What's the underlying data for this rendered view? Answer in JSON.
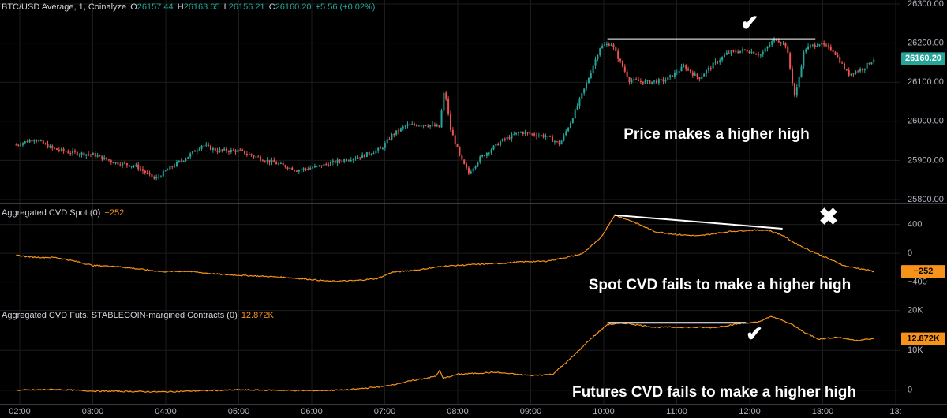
{
  "panes": {
    "price": {
      "header": {
        "symbol": "BTC/USD Average, 1, Coinalyze",
        "o_label": "O",
        "o": "26157.44",
        "h_label": "H",
        "h": "26163.65",
        "l_label": "L",
        "l": "26156.21",
        "c_label": "C",
        "c": "26160.20",
        "change": "+5.56 (+0.02%)"
      },
      "last_value": "26160.20",
      "annotation": "Price makes a higher high",
      "annotation_mark": "✔",
      "colors": {
        "up": "#26a69a",
        "down": "#ef5350",
        "last_badge": "#26a69a"
      }
    },
    "cvd_spot": {
      "header": {
        "name": "Aggregated CVD Spot (0)",
        "value": "−252"
      },
      "last_value": "−252",
      "annotation": "Spot CVD fails to make a higher high",
      "annotation_mark": "✖",
      "colors": {
        "line": "#f7931a"
      }
    },
    "cvd_futures": {
      "header": {
        "name": "Aggregated CVD Futs. STABLECOIN-margined Contracts (0)",
        "value": "12.872K"
      },
      "last_value": "12.872K",
      "annotation": "Futures CVD fails to make a higher high",
      "annotation_mark": "✔",
      "colors": {
        "line": "#f7931a"
      }
    }
  },
  "chart_data": [
    {
      "type": "candlestick",
      "title": "BTC/USD Average, 1, Coinalyze",
      "ylim": [
        25790,
        26310
      ],
      "y_ticks": [
        "25800.00",
        "25900.00",
        "26000.00",
        "26100.00",
        "26200.00",
        "26300.00"
      ],
      "x_tick_labels": [
        "02:00",
        "03:00",
        "04:00",
        "05:00",
        "06:00",
        "07:00",
        "08:00",
        "09:00",
        "10:00",
        "11:00",
        "12:00",
        "13:00",
        "13:"
      ],
      "x_range_hours": [
        1.95,
        13.7
      ],
      "series": [
        {
          "values": [
            [
              1.95,
              25940
            ],
            [
              2.2,
              25955
            ],
            [
              2.45,
              25930
            ],
            [
              2.7,
              25920
            ],
            [
              3.0,
              25915
            ],
            [
              3.3,
              25895
            ],
            [
              3.6,
              25885
            ],
            [
              3.85,
              25852
            ],
            [
              4.05,
              25880
            ],
            [
              4.3,
              25910
            ],
            [
              4.5,
              25940
            ],
            [
              4.7,
              25925
            ],
            [
              5.0,
              25925
            ],
            [
              5.3,
              25905
            ],
            [
              5.55,
              25890
            ],
            [
              5.8,
              25875
            ],
            [
              6.1,
              25885
            ],
            [
              6.4,
              25900
            ],
            [
              6.7,
              25912
            ],
            [
              6.95,
              25930
            ],
            [
              7.1,
              25965
            ],
            [
              7.3,
              25990
            ],
            [
              7.55,
              25992
            ],
            [
              7.75,
              25985
            ],
            [
              7.82,
              26085
            ],
            [
              7.9,
              25980
            ],
            [
              8.05,
              25900
            ],
            [
              8.15,
              25868
            ],
            [
              8.3,
              25905
            ],
            [
              8.6,
              25950
            ],
            [
              8.85,
              25972
            ],
            [
              9.2,
              25962
            ],
            [
              9.4,
              25942
            ],
            [
              9.55,
              26000
            ],
            [
              9.75,
              26090
            ],
            [
              9.95,
              26190
            ],
            [
              10.1,
              26200
            ],
            [
              10.35,
              26105
            ],
            [
              10.6,
              26100
            ],
            [
              10.85,
              26105
            ],
            [
              11.1,
              26140
            ],
            [
              11.3,
              26110
            ],
            [
              11.5,
              26145
            ],
            [
              11.7,
              26175
            ],
            [
              11.95,
              26182
            ],
            [
              12.15,
              26170
            ],
            [
              12.35,
              26212
            ],
            [
              12.5,
              26195
            ],
            [
              12.62,
              26060
            ],
            [
              12.75,
              26185
            ],
            [
              12.95,
              26200
            ],
            [
              13.15,
              26180
            ],
            [
              13.35,
              26120
            ],
            [
              13.55,
              26135
            ],
            [
              13.7,
              26160
            ]
          ]
        }
      ]
    },
    {
      "type": "line",
      "title": "Aggregated CVD Spot (0)",
      "ylim": [
        -700,
        680
      ],
      "y_ticks": [
        "−400",
        "0",
        "400"
      ],
      "series": [
        {
          "name": "Aggregated CVD Spot",
          "values": [
            [
              1.95,
              -30
            ],
            [
              2.2,
              -55
            ],
            [
              2.5,
              -60
            ],
            [
              2.8,
              -120
            ],
            [
              3.0,
              -170
            ],
            [
              3.3,
              -180
            ],
            [
              3.6,
              -215
            ],
            [
              3.95,
              -255
            ],
            [
              4.3,
              -250
            ],
            [
              4.7,
              -290
            ],
            [
              5.1,
              -310
            ],
            [
              5.55,
              -330
            ],
            [
              5.95,
              -360
            ],
            [
              6.25,
              -390
            ],
            [
              6.6,
              -380
            ],
            [
              6.9,
              -350
            ],
            [
              7.1,
              -265
            ],
            [
              7.5,
              -225
            ],
            [
              7.8,
              -180
            ],
            [
              8.2,
              -158
            ],
            [
              8.6,
              -140
            ],
            [
              8.9,
              -118
            ],
            [
              9.2,
              -112
            ],
            [
              9.45,
              -65
            ],
            [
              9.7,
              -10
            ],
            [
              9.95,
              200
            ],
            [
              10.15,
              530
            ],
            [
              10.4,
              440
            ],
            [
              10.7,
              300
            ],
            [
              11.0,
              260
            ],
            [
              11.3,
              240
            ],
            [
              11.7,
              300
            ],
            [
              12.0,
              320
            ],
            [
              12.25,
              320
            ],
            [
              12.45,
              250
            ],
            [
              12.6,
              150
            ],
            [
              12.8,
              50
            ],
            [
              13.0,
              -40
            ],
            [
              13.3,
              -175
            ],
            [
              13.55,
              -222
            ],
            [
              13.7,
              -252
            ]
          ]
        }
      ]
    },
    {
      "type": "line",
      "title": "Aggregated CVD Futs. STABLECOIN-margined Contracts (0)",
      "ylim": [
        -3000,
        21500
      ],
      "y_ticks": [
        "0",
        "10K",
        "20K"
      ],
      "series": [
        {
          "name": "Aggregated CVD Futs. STABLECOIN-margined Contracts",
          "values": [
            [
              1.95,
              0
            ],
            [
              2.5,
              200
            ],
            [
              3.0,
              -200
            ],
            [
              3.5,
              -300
            ],
            [
              4.0,
              -400
            ],
            [
              4.5,
              -100
            ],
            [
              5.0,
              100
            ],
            [
              5.5,
              0
            ],
            [
              6.0,
              -100
            ],
            [
              6.5,
              100
            ],
            [
              7.0,
              1000
            ],
            [
              7.4,
              2500
            ],
            [
              7.7,
              3500
            ],
            [
              7.75,
              5000
            ],
            [
              7.8,
              3000
            ],
            [
              8.0,
              4000
            ],
            [
              8.5,
              4500
            ],
            [
              9.0,
              3700
            ],
            [
              9.3,
              4000
            ],
            [
              9.55,
              8000
            ],
            [
              9.8,
              12500
            ],
            [
              10.05,
              16500
            ],
            [
              10.3,
              16800
            ],
            [
              10.7,
              15800
            ],
            [
              11.1,
              15800
            ],
            [
              11.5,
              15700
            ],
            [
              11.9,
              16800
            ],
            [
              12.1,
              17000
            ],
            [
              12.3,
              18500
            ],
            [
              12.55,
              16800
            ],
            [
              12.75,
              14500
            ],
            [
              12.95,
              12800
            ],
            [
              13.2,
              13300
            ],
            [
              13.45,
              12500
            ],
            [
              13.7,
              12872
            ]
          ]
        }
      ]
    }
  ]
}
